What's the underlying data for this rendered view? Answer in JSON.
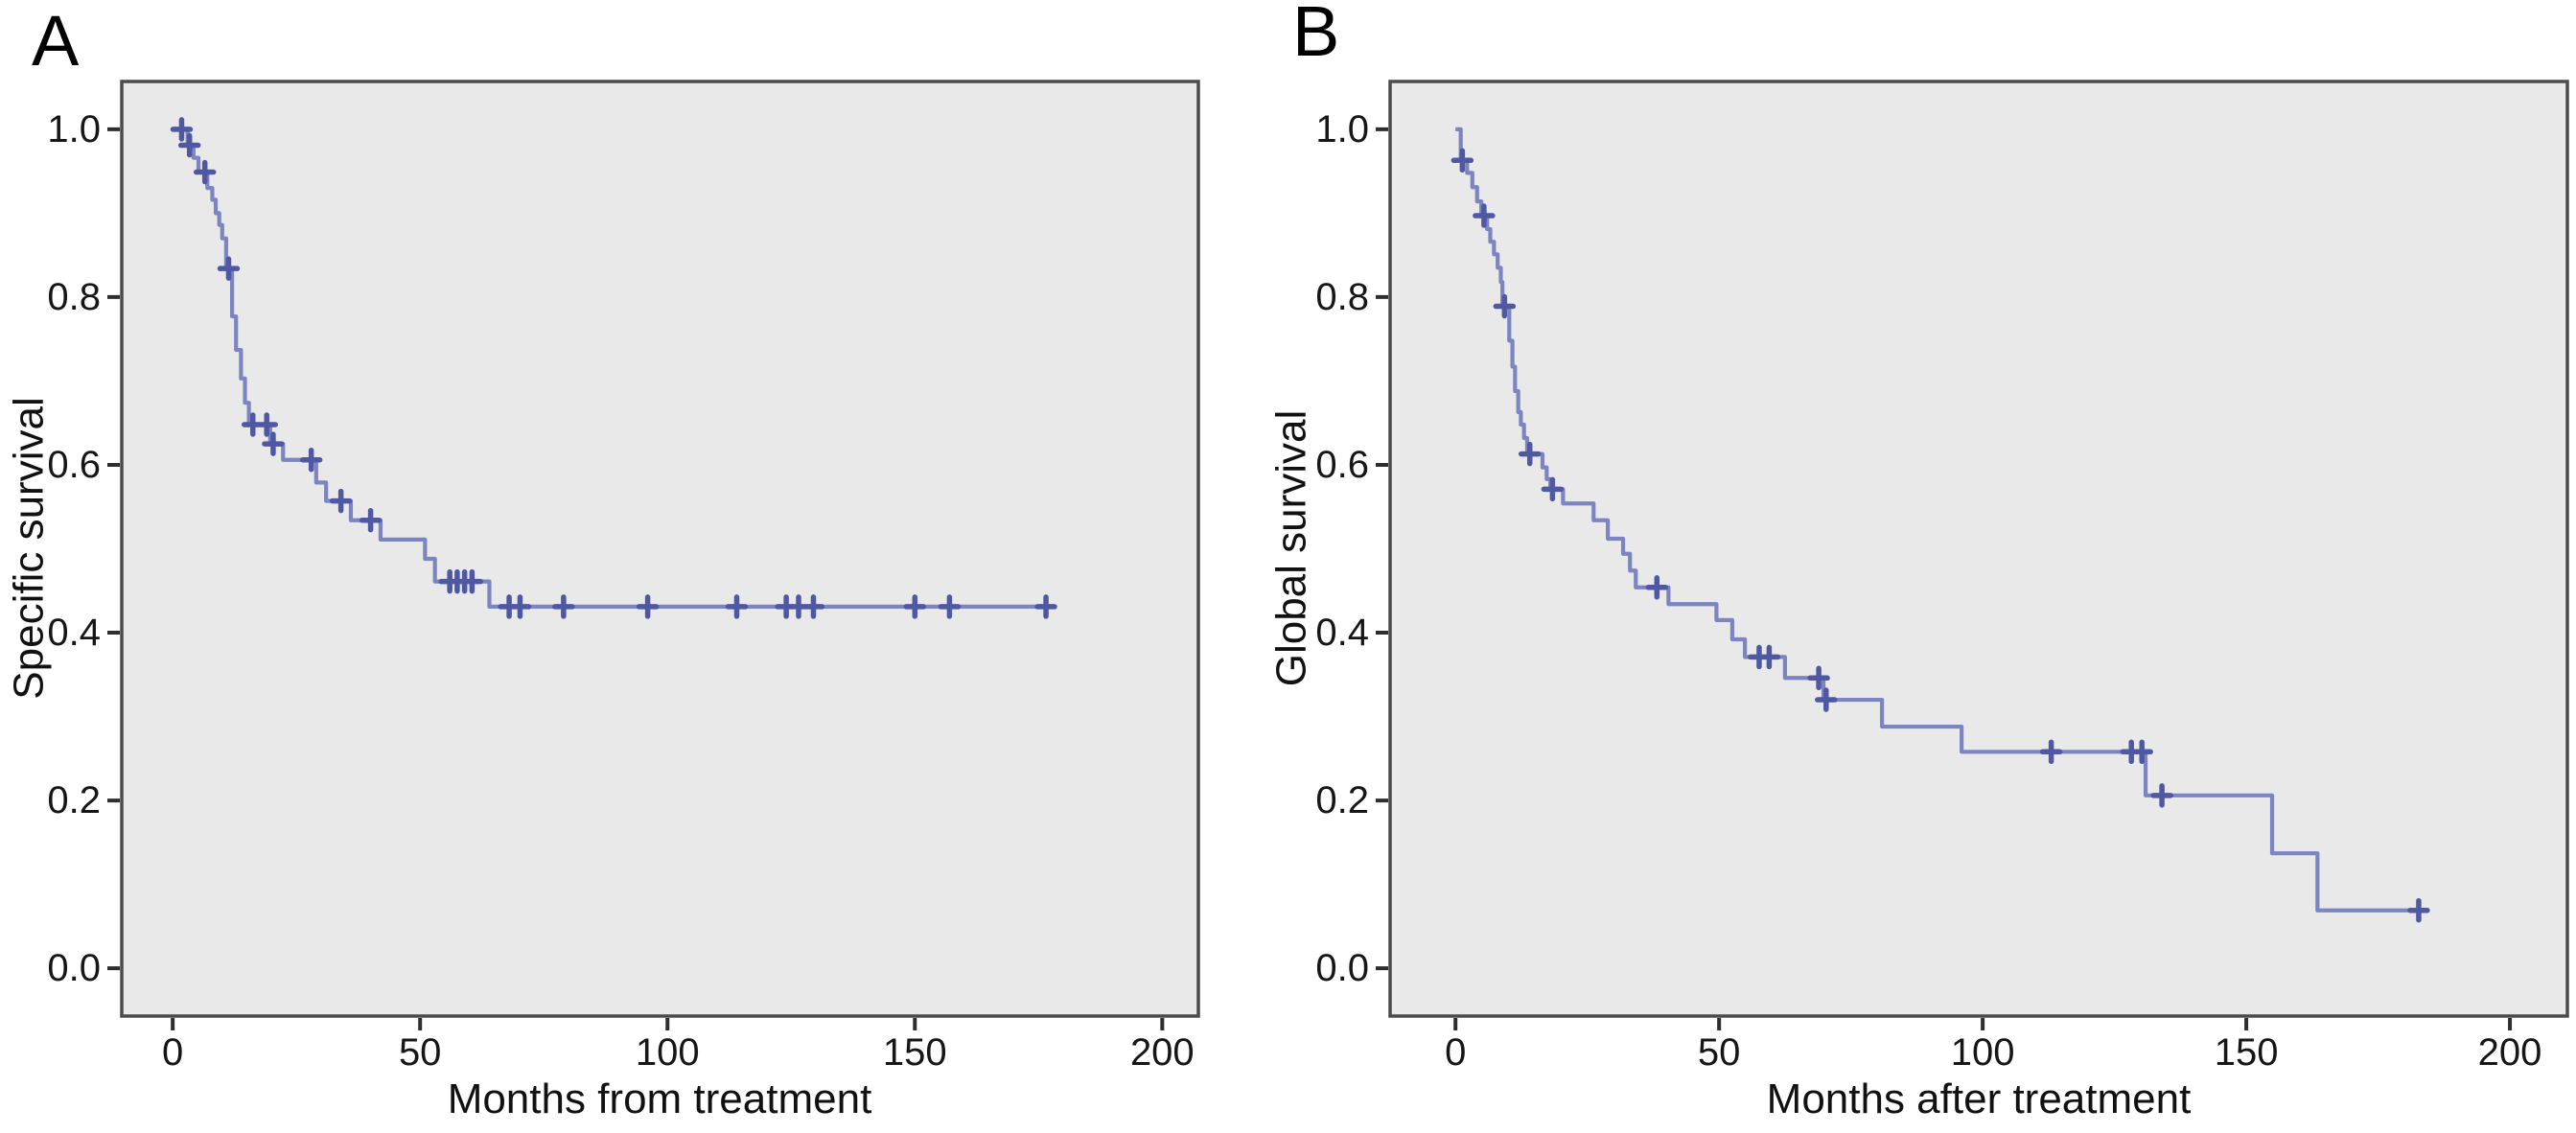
{
  "figure_colors": {
    "curve": "#7c85c1",
    "censor_mark": "#4f58a3",
    "plot_background": "#e9e9e9",
    "frame": "#4b4b4b",
    "tick": "#2e2e2e",
    "text": "#111111",
    "page_background": "#ffffff"
  },
  "chart_data": [
    {
      "type": "line",
      "subtype": "kaplan-meier-step-curve",
      "panel_label": "A",
      "xlabel": "Months from treatment",
      "ylabel": "Specific survival",
      "x_ticks": [
        0,
        50,
        100,
        150,
        200
      ],
      "y_ticks": [
        "0.0",
        "0.2",
        "0.4",
        "0.6",
        "0.8",
        "1.0"
      ],
      "xlim": [
        -10.3,
        207.3
      ],
      "ylim": [
        -0.057,
        1.057
      ],
      "grid": false,
      "legend": null,
      "series": [
        {
          "name": "Specific survival",
          "steps": [
            [
              0,
              1.0
            ],
            [
              3,
              0.981
            ],
            [
              4.2,
              0.966
            ],
            [
              5.2,
              0.949
            ],
            [
              7,
              0.93
            ],
            [
              8,
              0.916
            ],
            [
              8.7,
              0.9
            ],
            [
              9.4,
              0.886
            ],
            [
              10,
              0.87
            ],
            [
              10.8,
              0.834
            ],
            [
              12,
              0.777
            ],
            [
              12.8,
              0.737
            ],
            [
              13.8,
              0.703
            ],
            [
              14.6,
              0.674
            ],
            [
              15.4,
              0.648
            ],
            [
              19.7,
              0.625
            ],
            [
              22.3,
              0.606
            ],
            [
              29,
              0.579
            ],
            [
              31,
              0.557
            ],
            [
              36,
              0.534
            ],
            [
              42,
              0.511
            ],
            [
              51,
              0.488
            ],
            [
              53,
              0.461
            ],
            [
              64,
              0.431
            ]
          ],
          "end_time": 176.5,
          "censors": [
            [
              1.8,
              1.0
            ],
            [
              3.4,
              0.981
            ],
            [
              6.5,
              0.949
            ],
            [
              11.3,
              0.834
            ],
            [
              16.2,
              0.648
            ],
            [
              19,
              0.648
            ],
            [
              20.3,
              0.625
            ],
            [
              28,
              0.606
            ],
            [
              34,
              0.557
            ],
            [
              40,
              0.534
            ],
            [
              56,
              0.461
            ],
            [
              57.5,
              0.461
            ],
            [
              59,
              0.461
            ],
            [
              60.5,
              0.461
            ],
            [
              68,
              0.431
            ],
            [
              70.2,
              0.431
            ],
            [
              79,
              0.431
            ],
            [
              96,
              0.431
            ],
            [
              114,
              0.431
            ],
            [
              124,
              0.431
            ],
            [
              126.5,
              0.431
            ],
            [
              129.5,
              0.431
            ],
            [
              150,
              0.431
            ],
            [
              157,
              0.431
            ],
            [
              176.5,
              0.431
            ]
          ]
        }
      ]
    },
    {
      "type": "line",
      "subtype": "kaplan-meier-step-curve",
      "panel_label": "B",
      "xlabel": "Months after treatment",
      "ylabel": "Global survival",
      "x_ticks": [
        0,
        50,
        100,
        150,
        200
      ],
      "y_ticks": [
        "0.0",
        "0.2",
        "0.4",
        "0.6",
        "0.8",
        "1.0"
      ],
      "xlim": [
        -12.4,
        210.9
      ],
      "ylim": [
        -0.057,
        1.057
      ],
      "grid": false,
      "legend": null,
      "series": [
        {
          "name": "Global survival",
          "steps": [
            [
              0,
              1.0
            ],
            [
              1,
              0.963
            ],
            [
              2.2,
              0.948
            ],
            [
              3.2,
              0.931
            ],
            [
              4.1,
              0.914
            ],
            [
              4.9,
              0.897
            ],
            [
              6,
              0.881
            ],
            [
              6.6,
              0.866
            ],
            [
              7.3,
              0.851
            ],
            [
              8,
              0.835
            ],
            [
              8.6,
              0.818
            ],
            [
              8.9,
              0.789
            ],
            [
              10.2,
              0.748
            ],
            [
              10.8,
              0.717
            ],
            [
              11.3,
              0.688
            ],
            [
              11.9,
              0.663
            ],
            [
              12.4,
              0.648
            ],
            [
              13,
              0.632
            ],
            [
              13.6,
              0.613
            ],
            [
              16.5,
              0.597
            ],
            [
              17.3,
              0.583
            ],
            [
              18,
              0.571
            ],
            [
              20.4,
              0.554
            ],
            [
              26.2,
              0.534
            ],
            [
              28.9,
              0.512
            ],
            [
              31.8,
              0.494
            ],
            [
              33.1,
              0.474
            ],
            [
              34.2,
              0.454
            ],
            [
              40.4,
              0.434
            ],
            [
              49.5,
              0.415
            ],
            [
              52.5,
              0.392
            ],
            [
              54.9,
              0.371
            ],
            [
              62.5,
              0.346
            ],
            [
              69.8,
              0.32
            ],
            [
              80.9,
              0.288
            ],
            [
              96,
              0.258
            ],
            [
              130.9,
              0.206
            ],
            [
              154.9,
              0.137
            ],
            [
              163.5,
              0.069
            ]
          ],
          "end_time": 182.7,
          "censors": [
            [
              1.3,
              0.963
            ],
            [
              5.4,
              0.897
            ],
            [
              9.3,
              0.789
            ],
            [
              14.1,
              0.613
            ],
            [
              18.4,
              0.571
            ],
            [
              38.2,
              0.454
            ],
            [
              57.6,
              0.371
            ],
            [
              59.5,
              0.371
            ],
            [
              68.9,
              0.346
            ],
            [
              70.3,
              0.32
            ],
            [
              113,
              0.258
            ],
            [
              128.2,
              0.258
            ],
            [
              130.2,
              0.258
            ],
            [
              134,
              0.206
            ],
            [
              182.7,
              0.069
            ]
          ]
        }
      ]
    }
  ]
}
